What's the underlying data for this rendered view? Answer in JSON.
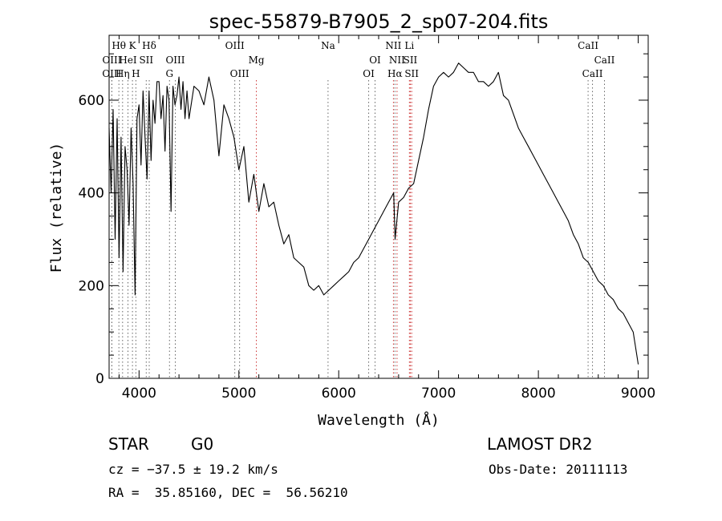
{
  "chart_data": {
    "type": "line",
    "title": "spec-55879-B7905_2_sp07-204.fits",
    "xlabel": "Wavelength (Å)",
    "ylabel": "Flux (relative)",
    "xlim": [
      3700,
      9100
    ],
    "ylim": [
      0,
      740
    ],
    "x_ticks": [
      4000,
      5000,
      6000,
      7000,
      8000,
      9000
    ],
    "x_tick_labels": [
      "4000",
      "5000",
      "6000",
      "7000",
      "8000",
      "9000"
    ],
    "y_ticks": [
      0,
      200,
      400,
      600
    ],
    "y_tick_labels": [
      "0",
      "200",
      "400",
      "600"
    ],
    "grid": false,
    "series": [
      {
        "color": "#000000",
        "x": [
          3700,
          3720,
          3740,
          3760,
          3780,
          3800,
          3820,
          3840,
          3860,
          3880,
          3900,
          3920,
          3940,
          3960,
          3980,
          4000,
          4020,
          4040,
          4060,
          4080,
          4100,
          4120,
          4140,
          4160,
          4180,
          4200,
          4220,
          4240,
          4260,
          4280,
          4300,
          4320,
          4340,
          4360,
          4380,
          4400,
          4420,
          4440,
          4460,
          4480,
          4500,
          4550,
          4600,
          4650,
          4700,
          4750,
          4800,
          4850,
          4900,
          4950,
          5000,
          5050,
          5100,
          5150,
          5200,
          5250,
          5300,
          5350,
          5400,
          5450,
          5500,
          5550,
          5600,
          5650,
          5700,
          5750,
          5800,
          5850,
          5900,
          5950,
          6000,
          6050,
          6100,
          6150,
          6200,
          6250,
          6300,
          6350,
          6400,
          6450,
          6500,
          6550,
          6565,
          6600,
          6650,
          6700,
          6750,
          6800,
          6850,
          6900,
          6950,
          7000,
          7050,
          7100,
          7150,
          7200,
          7250,
          7300,
          7350,
          7400,
          7450,
          7500,
          7550,
          7600,
          7650,
          7700,
          7750,
          7800,
          7850,
          7900,
          7950,
          8000,
          8050,
          8100,
          8150,
          8200,
          8250,
          8300,
          8350,
          8400,
          8450,
          8500,
          8550,
          8600,
          8650,
          8700,
          8750,
          8800,
          8850,
          8900,
          8950,
          9000
        ],
        "y": [
          540,
          400,
          580,
          300,
          560,
          260,
          520,
          230,
          500,
          450,
          330,
          540,
          420,
          180,
          560,
          590,
          460,
          620,
          520,
          430,
          620,
          470,
          600,
          550,
          640,
          640,
          560,
          610,
          490,
          630,
          600,
          360,
          630,
          590,
          610,
          650,
          580,
          640,
          560,
          620,
          560,
          630,
          620,
          590,
          650,
          600,
          480,
          590,
          560,
          520,
          450,
          500,
          380,
          440,
          360,
          420,
          370,
          380,
          330,
          290,
          310,
          260,
          250,
          240,
          200,
          190,
          200,
          180,
          190,
          200,
          210,
          220,
          230,
          250,
          260,
          280,
          300,
          320,
          340,
          360,
          380,
          400,
          300,
          380,
          390,
          410,
          420,
          470,
          520,
          580,
          630,
          650,
          660,
          650,
          660,
          680,
          670,
          660,
          660,
          640,
          640,
          630,
          640,
          660,
          610,
          600,
          570,
          540,
          520,
          500,
          480,
          460,
          440,
          420,
          400,
          380,
          360,
          340,
          310,
          290,
          260,
          250,
          230,
          210,
          200,
          180,
          170,
          150,
          140,
          120,
          100,
          30
        ]
      }
    ],
    "spectral_lines": [
      {
        "label": "Hθ",
        "x": 3798,
        "row": 1
      },
      {
        "label": "K",
        "x": 3934,
        "row": 1
      },
      {
        "label": "Hδ",
        "x": 4102,
        "row": 1
      },
      {
        "label": "OIII",
        "x": 3728,
        "row": 2
      },
      {
        "label": "HeI",
        "x": 3889,
        "row": 2
      },
      {
        "label": "SII",
        "x": 4072,
        "row": 2
      },
      {
        "label": "OIII",
        "x": 4363,
        "row": 2
      },
      {
        "label": "OIII",
        "x": 3727,
        "row": 3
      },
      {
        "label": "Hη",
        "x": 3835,
        "row": 3
      },
      {
        "label": "H",
        "x": 3968,
        "row": 3
      },
      {
        "label": "G",
        "x": 4305,
        "row": 3
      },
      {
        "label": "OIII",
        "x": 4959,
        "row": 1
      },
      {
        "label": "Mg",
        "x": 5175,
        "row": 2
      },
      {
        "label": "OIII",
        "x": 5007,
        "row": 3
      },
      {
        "label": "Na",
        "x": 5893,
        "row": 1
      },
      {
        "label": "NII",
        "x": 6548,
        "row": 1
      },
      {
        "label": "Li",
        "x": 6708,
        "row": 1
      },
      {
        "label": "OI",
        "x": 6364,
        "row": 2
      },
      {
        "label": "NII",
        "x": 6584,
        "row": 2
      },
      {
        "label": "SII",
        "x": 6717,
        "row": 2
      },
      {
        "label": "OI",
        "x": 6300,
        "row": 3
      },
      {
        "label": "Hα",
        "x": 6563,
        "row": 3
      },
      {
        "label": "SII",
        "x": 6731,
        "row": 3
      },
      {
        "label": "CaII",
        "x": 8498,
        "row": 1
      },
      {
        "label": "CaII",
        "x": 8662,
        "row": 2
      },
      {
        "label": "CaII",
        "x": 8542,
        "row": 3
      }
    ]
  },
  "info": {
    "object_class": "STAR",
    "subclass": "G0",
    "survey": "LAMOST DR2",
    "redshift": "cz = −37.5 ± 19.2 km/s",
    "obs_date": "Obs-Date: 20111113",
    "coords": "RA =  35.85160, DEC =  56.56210"
  }
}
